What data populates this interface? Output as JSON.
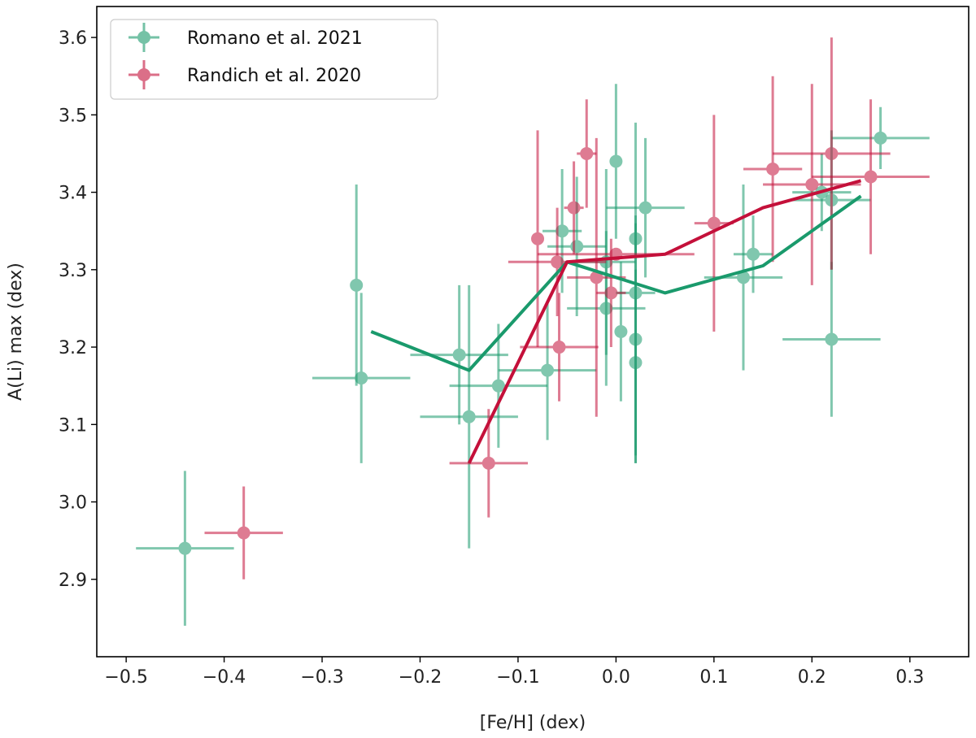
{
  "chart_data": {
    "type": "scatter",
    "title": "",
    "xlabel": "[Fe/H] (dex)",
    "ylabel": "A(Li) max (dex)",
    "xlim": [
      -0.53,
      0.36
    ],
    "ylim": [
      2.8,
      3.64
    ],
    "x_ticks": [
      -0.5,
      -0.4,
      -0.3,
      -0.2,
      -0.1,
      0.0,
      0.1,
      0.2,
      0.3
    ],
    "x_tick_labels": [
      "−0.5",
      "−0.4",
      "−0.3",
      "−0.2",
      "−0.1",
      "0.0",
      "0.1",
      "0.2",
      "0.3"
    ],
    "y_ticks": [
      2.9,
      3.0,
      3.1,
      3.2,
      3.3,
      3.4,
      3.5,
      3.6
    ],
    "y_tick_labels": [
      "2.9",
      "3.0",
      "3.1",
      "3.2",
      "3.3",
      "3.4",
      "3.5",
      "3.6"
    ],
    "grid": false,
    "legend_position": "top-left",
    "series": [
      {
        "name": "Romano et al. 2021",
        "color": "#1a9a6c",
        "points": [
          {
            "x": -0.44,
            "y": 2.94,
            "xerr": 0.05,
            "yerr": 0.1
          },
          {
            "x": -0.265,
            "y": 3.28,
            "xerr": 0.0,
            "yerr": 0.13
          },
          {
            "x": -0.26,
            "y": 3.16,
            "xerr": 0.05,
            "yerr": 0.11
          },
          {
            "x": -0.16,
            "y": 3.19,
            "xerr": 0.05,
            "yerr": 0.09
          },
          {
            "x": -0.15,
            "y": 3.11,
            "xerr": 0.05,
            "yerr": 0.17
          },
          {
            "x": -0.12,
            "y": 3.15,
            "xerr": 0.05,
            "yerr": 0.08
          },
          {
            "x": -0.07,
            "y": 3.17,
            "xerr": 0.05,
            "yerr": 0.09
          },
          {
            "x": -0.055,
            "y": 3.35,
            "xerr": 0.02,
            "yerr": 0.08
          },
          {
            "x": -0.04,
            "y": 3.33,
            "xerr": 0.03,
            "yerr": 0.09
          },
          {
            "x": -0.01,
            "y": 3.31,
            "xerr": 0.03,
            "yerr": 0.12
          },
          {
            "x": -0.01,
            "y": 3.25,
            "xerr": 0.04,
            "yerr": 0.1
          },
          {
            "x": 0.0,
            "y": 3.44,
            "xerr": 0.0,
            "yerr": 0.1
          },
          {
            "x": 0.005,
            "y": 3.22,
            "xerr": 0.0,
            "yerr": 0.09
          },
          {
            "x": 0.02,
            "y": 3.34,
            "xerr": 0.0,
            "yerr": 0.02
          },
          {
            "x": 0.02,
            "y": 3.27,
            "xerr": 0.02,
            "yerr": 0.22
          },
          {
            "x": 0.02,
            "y": 3.21,
            "xerr": 0.0,
            "yerr": 0.16
          },
          {
            "x": 0.02,
            "y": 3.18,
            "xerr": 0.0,
            "yerr": 0.12
          },
          {
            "x": 0.03,
            "y": 3.38,
            "xerr": 0.04,
            "yerr": 0.09
          },
          {
            "x": 0.13,
            "y": 3.29,
            "xerr": 0.04,
            "yerr": 0.12
          },
          {
            "x": 0.14,
            "y": 3.32,
            "xerr": 0.02,
            "yerr": 0.05
          },
          {
            "x": 0.21,
            "y": 3.4,
            "xerr": 0.03,
            "yerr": 0.05
          },
          {
            "x": 0.22,
            "y": 3.39,
            "xerr": 0.04,
            "yerr": 0.09
          },
          {
            "x": 0.22,
            "y": 3.21,
            "xerr": 0.05,
            "yerr": 0.1
          },
          {
            "x": 0.27,
            "y": 3.47,
            "xerr": 0.05,
            "yerr": 0.04
          }
        ],
        "trend": [
          {
            "x": -0.25,
            "y": 3.22
          },
          {
            "x": -0.15,
            "y": 3.17
          },
          {
            "x": -0.05,
            "y": 3.31
          },
          {
            "x": 0.05,
            "y": 3.27
          },
          {
            "x": 0.15,
            "y": 3.305
          },
          {
            "x": 0.25,
            "y": 3.395
          }
        ]
      },
      {
        "name": "Randich et al. 2020",
        "color": "#c4103a",
        "points": [
          {
            "x": -0.38,
            "y": 2.96,
            "xerr": 0.04,
            "yerr": 0.06
          },
          {
            "x": -0.13,
            "y": 3.05,
            "xerr": 0.04,
            "yerr": 0.07
          },
          {
            "x": -0.08,
            "y": 3.34,
            "xerr": 0.0,
            "yerr": 0.14
          },
          {
            "x": -0.06,
            "y": 3.31,
            "xerr": 0.05,
            "yerr": 0.07
          },
          {
            "x": -0.058,
            "y": 3.2,
            "xerr": 0.04,
            "yerr": 0.07
          },
          {
            "x": -0.043,
            "y": 3.38,
            "xerr": 0.01,
            "yerr": 0.06
          },
          {
            "x": -0.03,
            "y": 3.45,
            "xerr": 0.01,
            "yerr": 0.07
          },
          {
            "x": -0.02,
            "y": 3.29,
            "xerr": 0.03,
            "yerr": 0.18
          },
          {
            "x": -0.005,
            "y": 3.27,
            "xerr": 0.015,
            "yerr": 0.07
          },
          {
            "x": 0.0,
            "y": 3.32,
            "xerr": 0.08,
            "yerr": 0.0
          },
          {
            "x": 0.1,
            "y": 3.36,
            "xerr": 0.02,
            "yerr": 0.14
          },
          {
            "x": 0.16,
            "y": 3.43,
            "xerr": 0.03,
            "yerr": 0.12
          },
          {
            "x": 0.2,
            "y": 3.41,
            "xerr": 0.05,
            "yerr": 0.13
          },
          {
            "x": 0.22,
            "y": 3.45,
            "xerr": 0.06,
            "yerr": 0.15
          },
          {
            "x": 0.26,
            "y": 3.42,
            "xerr": 0.06,
            "yerr": 0.1
          }
        ],
        "trend": [
          {
            "x": -0.15,
            "y": 3.05
          },
          {
            "x": -0.05,
            "y": 3.31
          },
          {
            "x": 0.0,
            "y": 3.315
          },
          {
            "x": 0.05,
            "y": 3.32
          },
          {
            "x": 0.15,
            "y": 3.38
          },
          {
            "x": 0.25,
            "y": 3.415
          }
        ]
      }
    ]
  }
}
